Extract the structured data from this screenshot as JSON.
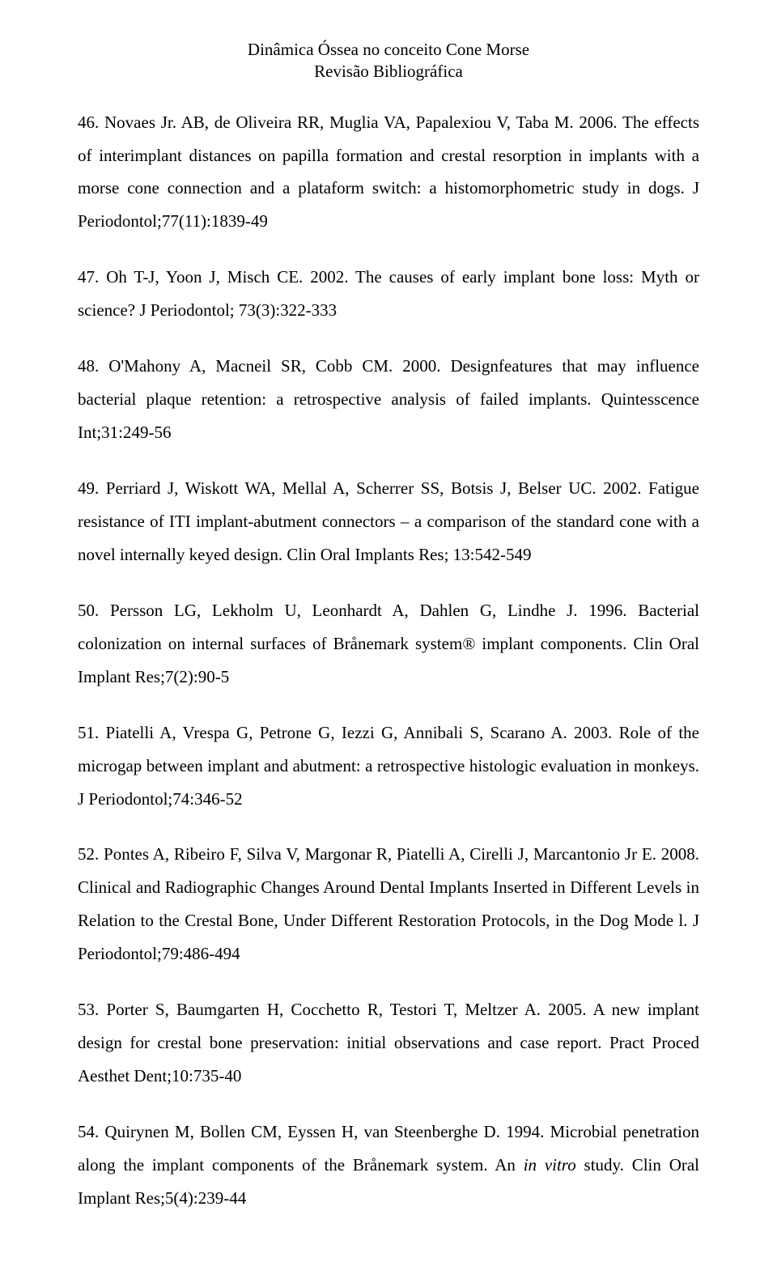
{
  "header": {
    "title": "Dinâmica Óssea no conceito Cone Morse",
    "subtitle": "Revisão Bibliográfica"
  },
  "references": [
    {
      "text": "46. Novaes Jr. AB, de Oliveira RR, Muglia VA, Papalexiou V, Taba M. 2006. The effects of interimplant distances on papilla formation and crestal resorption in implants with a morse cone connection and a plataform switch: a histomorphometric study in dogs. J Periodontol;77(11):1839-49"
    },
    {
      "text": "47. Oh T-J, Yoon J, Misch CE. 2002. The causes of early implant bone loss: Myth or science? J Periodontol; 73(3):322-333"
    },
    {
      "text": "48. O'Mahony A, Macneil SR, Cobb CM. 2000. Designfeatures that may influence bacterial plaque retention: a retrospective analysis of failed implants. Quintesscence Int;31:249-56"
    },
    {
      "text": "49. Perriard J, Wiskott WA, Mellal A, Scherrer SS, Botsis J, Belser UC. 2002. Fatigue resistance of ITI implant-abutment connectors – a comparison of the standard cone with a novel internally keyed design. Clin Oral Implants Res; 13:542-549"
    },
    {
      "text": "50. Persson LG, Lekholm U, Leonhardt A, Dahlen G, Lindhe J. 1996. Bacterial colonization on internal surfaces of Brånemark system® implant components. Clin Oral Implant Res;7(2):90-5"
    },
    {
      "text": "51. Piatelli A, Vrespa G, Petrone G, Iezzi G, Annibali S, Scarano A. 2003. Role of the microgap between implant and abutment: a retrospective histologic evaluation in monkeys. J Periodontol;74:346-52"
    },
    {
      "text": "52. Pontes A, Ribeiro F, Silva V, Margonar R, Piatelli A, Cirelli J, Marcantonio Jr E. 2008. Clinical and Radiographic Changes Around Dental Implants Inserted in Different Levels in Relation to the Crestal Bone, Under Different Restoration Protocols, in the Dog Mode l. J Periodontol;79:486-494"
    },
    {
      "text": "53. Porter S, Baumgarten H, Cocchetto R, Testori T, Meltzer A. 2005. A new implant design for crestal bone preservation: initial observations and case report. Pract Proced Aesthet Dent;10:735-40"
    },
    {
      "prefix": "54. Quirynen M, Bollen CM, Eyssen H, van Steenberghe D. 1994. Microbial penetration along the implant components of the Brånemark system. An ",
      "italic": "in vitro",
      "suffix": " study. Clin Oral Implant Res;5(4):239-44"
    }
  ]
}
